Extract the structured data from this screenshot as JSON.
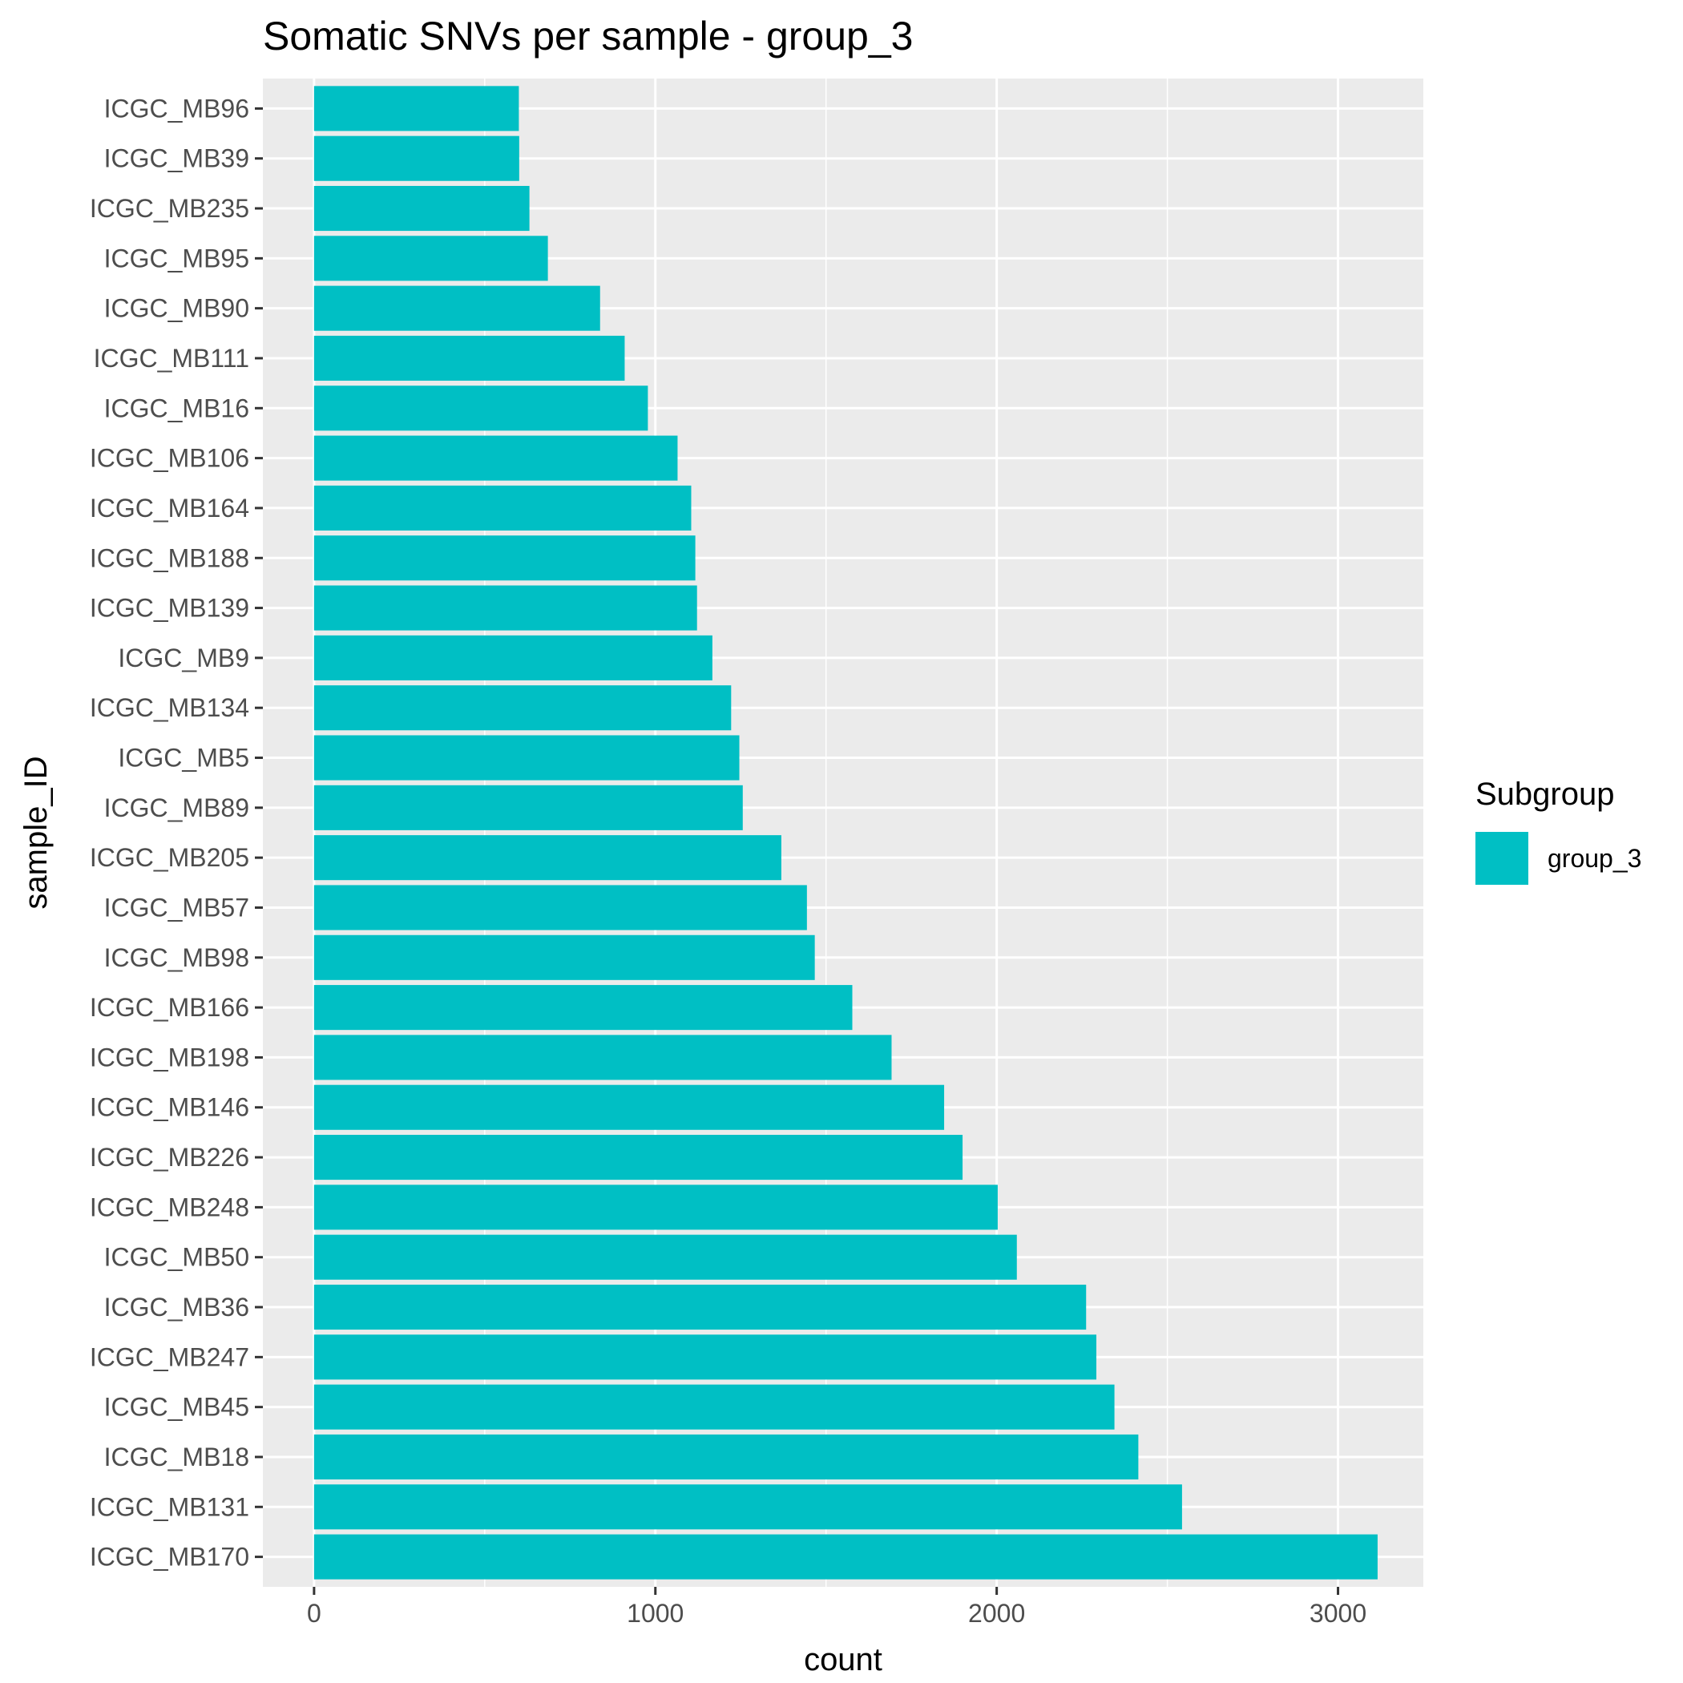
{
  "chart_data": {
    "type": "bar",
    "orientation": "horizontal",
    "title": "Somatic SNVs per sample - group_3",
    "xlabel": "count",
    "ylabel": "sample_ID",
    "xlim": [
      -150,
      3250
    ],
    "x_ticks": [
      0,
      1000,
      2000,
      3000
    ],
    "x_tick_labels": [
      "0",
      "1000",
      "2000",
      "3000"
    ],
    "grid": true,
    "legend": {
      "title": "Subgroup",
      "placement": "right",
      "entries": [
        {
          "label": "group_3",
          "color": "#00BFC4"
        }
      ]
    },
    "colors": {
      "bar": "#00BFC4",
      "panel_background": "#EBEBEB",
      "grid": "#FFFFFF",
      "tick_label": "#4D4D4D",
      "tick_mark": "#333333"
    },
    "categories": [
      "ICGC_MB96",
      "ICGC_MB39",
      "ICGC_MB235",
      "ICGC_MB95",
      "ICGC_MB90",
      "ICGC_MB111",
      "ICGC_MB16",
      "ICGC_MB106",
      "ICGC_MB164",
      "ICGC_MB188",
      "ICGC_MB139",
      "ICGC_MB9",
      "ICGC_MB134",
      "ICGC_MB5",
      "ICGC_MB89",
      "ICGC_MB205",
      "ICGC_MB57",
      "ICGC_MB98",
      "ICGC_MB166",
      "ICGC_MB198",
      "ICGC_MB146",
      "ICGC_MB226",
      "ICGC_MB248",
      "ICGC_MB50",
      "ICGC_MB36",
      "ICGC_MB247",
      "ICGC_MB45",
      "ICGC_MB18",
      "ICGC_MB131",
      "ICGC_MB170"
    ],
    "series": [
      {
        "name": "group_3",
        "values": [
          600,
          601,
          631,
          685,
          838,
          910,
          978,
          1065,
          1105,
          1117,
          1122,
          1167,
          1222,
          1246,
          1256,
          1369,
          1444,
          1467,
          1577,
          1692,
          1846,
          1900,
          2003,
          2059,
          2262,
          2292,
          2345,
          2415,
          2543,
          3116
        ]
      }
    ]
  }
}
